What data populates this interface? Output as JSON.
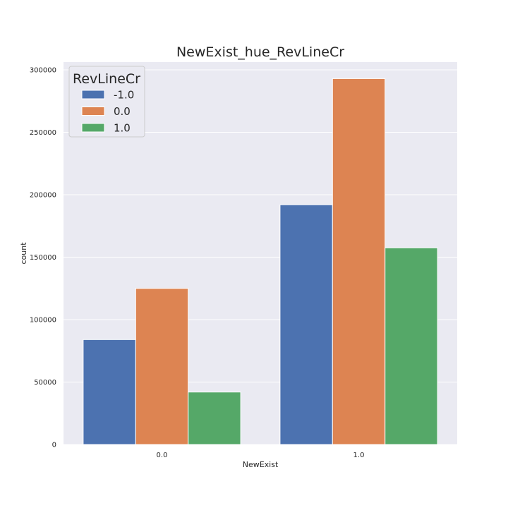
{
  "chart_data": {
    "type": "bar",
    "title": "NewExist_hue_RevLineCr",
    "xlabel": "NewExist",
    "ylabel": "count",
    "categories": [
      "0.0",
      "1.0"
    ],
    "series": [
      {
        "name": "-1.0",
        "values": [
          84000,
          192000
        ],
        "color": "#4c72b0"
      },
      {
        "name": "0.0",
        "values": [
          125000,
          293000
        ],
        "color": "#dd8452"
      },
      {
        "name": "1.0",
        "values": [
          42000,
          157500
        ],
        "color": "#55a868"
      }
    ],
    "ylim": [
      0,
      300000
    ],
    "yticks": [
      0,
      50000,
      100000,
      150000,
      200000,
      250000,
      300000
    ],
    "ytick_labels": [
      "0",
      "50000",
      "100000",
      "150000",
      "200000",
      "250000",
      "300000"
    ],
    "legend_title": "RevLineCr",
    "legend_position": "top-left",
    "grid": true,
    "background_color": "#eaeaf2"
  }
}
